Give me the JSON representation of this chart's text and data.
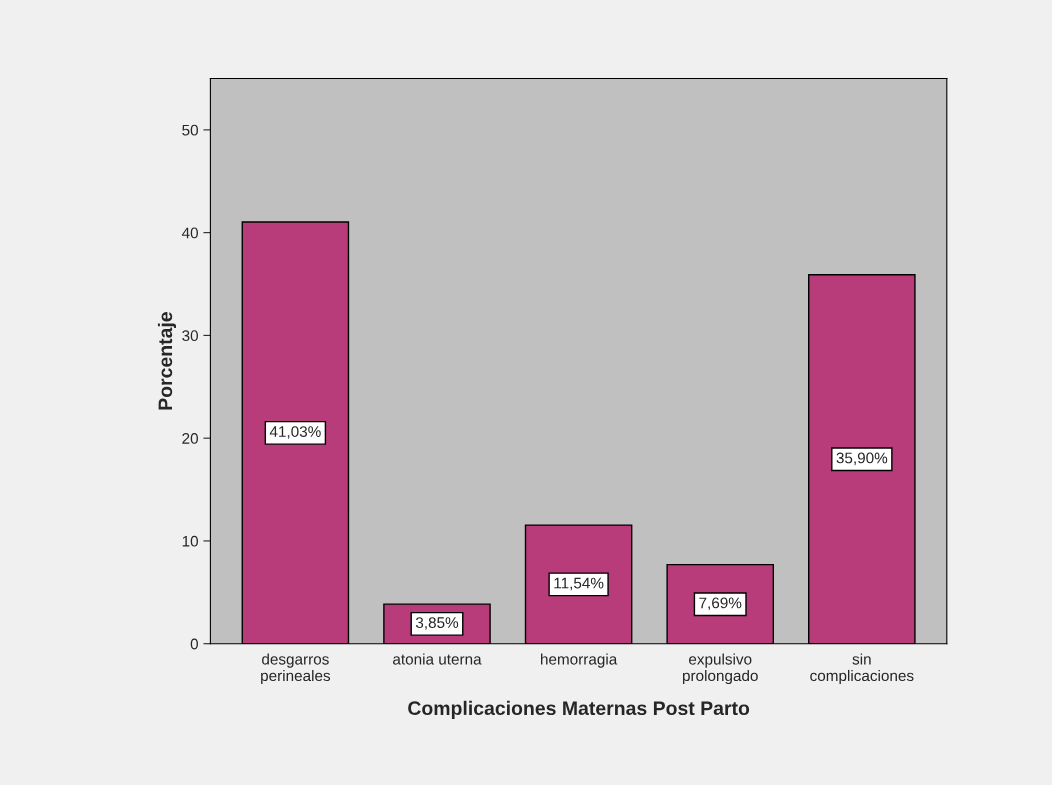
{
  "chart_data": {
    "type": "bar",
    "xlabel": "Complicaciones Maternas Post Parto",
    "ylabel": "Porcentaje",
    "categories": [
      "desgarros\nperineales",
      "atonia uterna",
      "hemorragia",
      "expulsivo\nprolongado",
      "sin\ncomplicaciones"
    ],
    "values": [
      41.03,
      3.85,
      11.54,
      7.69,
      35.9
    ],
    "value_labels": [
      "41,03%",
      "3,85%",
      "11,54%",
      "7,69%",
      "35,90%"
    ],
    "color": "#b83c7a",
    "ylim": [
      0,
      55
    ],
    "yticks": [
      0,
      10,
      20,
      30,
      40,
      50
    ],
    "grid": false
  }
}
